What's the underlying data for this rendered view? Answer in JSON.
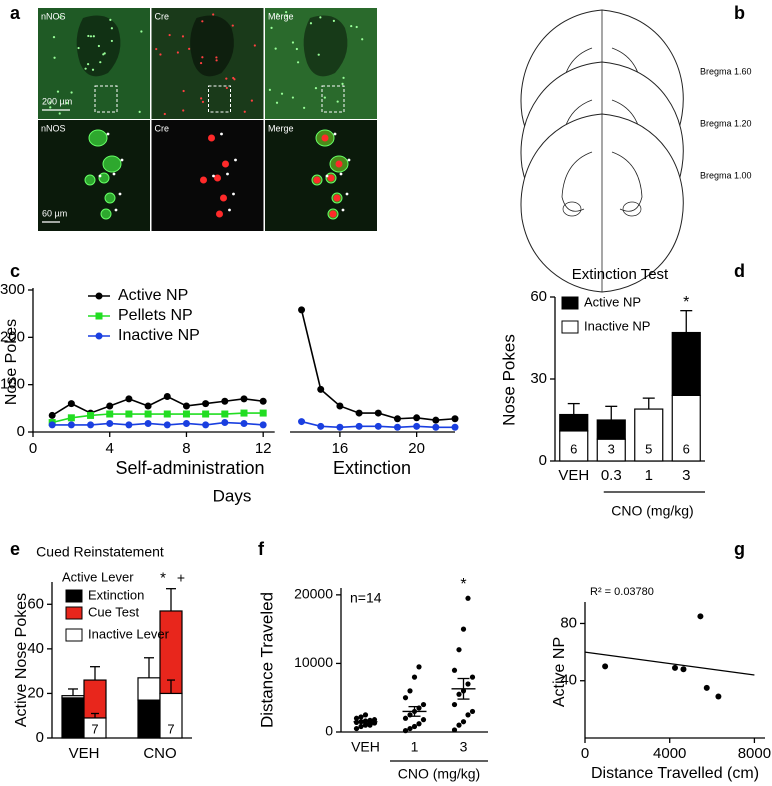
{
  "panel_a": {
    "label": "a",
    "columns": [
      "nNOS",
      "Cre",
      "Merge"
    ],
    "scale_bars": [
      "200 µm",
      "60 µm"
    ]
  },
  "panel_b": {
    "label": "b",
    "sections": [
      "Bregma 1.60",
      "Bregma 1.20",
      "Bregma 1.00"
    ]
  },
  "chart_data": [
    {
      "type": "line",
      "label": "c",
      "y_label": "Nose Pokes",
      "x_label": "Days",
      "phase_labels": [
        "Self-administration",
        "Extinction"
      ],
      "x": [
        1,
        2,
        3,
        4,
        5,
        6,
        7,
        8,
        9,
        10,
        11,
        12,
        13,
        14,
        15,
        16,
        17,
        18,
        19,
        20,
        21,
        22
      ],
      "xlim": [
        0,
        22
      ],
      "xticks": [
        0,
        4,
        8,
        12,
        16,
        20
      ],
      "ylim": [
        0,
        300
      ],
      "yticks": [
        0,
        100,
        200,
        300
      ],
      "series": [
        {
          "name": "Active NP",
          "color": "#000000",
          "marker": "circle",
          "values": [
            35,
            60,
            40,
            55,
            70,
            55,
            75,
            55,
            60,
            65,
            70,
            65,
            null,
            258,
            90,
            55,
            40,
            40,
            28,
            30,
            25,
            28
          ]
        },
        {
          "name": "Pellets NP",
          "color": "#22dd22",
          "marker": "square",
          "values": [
            20,
            30,
            35,
            38,
            38,
            38,
            38,
            38,
            38,
            38,
            40,
            40,
            null,
            null,
            null,
            null,
            null,
            null,
            null,
            null,
            null,
            null
          ]
        },
        {
          "name": "Inactive NP",
          "color": "#1a3fe0",
          "marker": "circle",
          "values": [
            15,
            15,
            15,
            18,
            15,
            18,
            15,
            18,
            15,
            20,
            18,
            15,
            null,
            22,
            12,
            10,
            12,
            12,
            10,
            12,
            10,
            10
          ]
        }
      ]
    },
    {
      "type": "stacked_bar",
      "label": "d",
      "title": "Extinction Test",
      "y_label": "Nose Pokes",
      "categories": [
        "VEH",
        "0.3",
        "1",
        "3"
      ],
      "group_label": "CNO (mg/kg)",
      "ylim": [
        0,
        60
      ],
      "yticks": [
        0,
        30,
        60
      ],
      "series": [
        {
          "name": "Inactive NP",
          "color": "#ffffff",
          "values": [
            11,
            8,
            19,
            24
          ],
          "errors": [
            null,
            null,
            null,
            7
          ]
        },
        {
          "name": "Active NP",
          "color": "#000000",
          "values": [
            6,
            7,
            0,
            23
          ],
          "errors": [
            4,
            5,
            4,
            8
          ]
        }
      ],
      "n_labels": [
        "6",
        "3",
        "5",
        "6"
      ],
      "annotations": [
        "*"
      ]
    },
    {
      "type": "grouped_stacked_bar",
      "label": "e",
      "title": "Cued Reinstatement",
      "y_label": "Active Nose Pokes",
      "legend_title": "Active Lever",
      "categories": [
        "VEH",
        "CNO"
      ],
      "ylim": [
        0,
        70
      ],
      "yticks": [
        0,
        20,
        40,
        60
      ],
      "series": [
        {
          "name": "Extinction",
          "color": "#000000",
          "values": [
            18,
            17
          ]
        },
        {
          "name": "Cue Test",
          "color": "#e8261c",
          "values": [
            17,
            37
          ],
          "errors": [
            6,
            10
          ]
        },
        {
          "name": "Inactive Lever",
          "color": "#ffffff",
          "values": [
            1,
            10
          ],
          "errors": [
            3,
            9
          ],
          "cue_values": [
            9,
            20
          ],
          "cue_errors": [
            2,
            6
          ]
        }
      ],
      "n_labels": [
        "7",
        "7"
      ],
      "annotations": [
        "*",
        "+"
      ]
    },
    {
      "type": "strip",
      "label": "f",
      "y_label": "Distance Traveled",
      "categories": [
        "VEH",
        "1",
        "3"
      ],
      "group_label": "CNO (mg/kg)",
      "color": "#000000",
      "ylim": [
        0,
        21000
      ],
      "yticks": [
        0,
        10000,
        20000
      ],
      "values": [
        [
          500,
          800,
          1000,
          1200,
          1300,
          1400,
          1500,
          1600,
          1700,
          1800,
          2000,
          2200,
          2500,
          1000
        ],
        [
          200,
          500,
          800,
          1200,
          1800,
          2000,
          2500,
          3000,
          3500,
          4000,
          5000,
          6000,
          8000,
          9500
        ],
        [
          300,
          1000,
          1500,
          2500,
          3000,
          4000,
          5500,
          6000,
          7000,
          8000,
          9000,
          12000,
          15000,
          19500
        ]
      ],
      "means": [
        1500,
        3000,
        6300
      ],
      "sems": [
        200,
        700,
        1500
      ],
      "annotations": [
        "n=14",
        "*"
      ]
    },
    {
      "type": "scatter",
      "label": "g",
      "x_label": "Distance Travelled (cm)",
      "y_label": "Active NP",
      "color": "#000000",
      "x": [
        950,
        4250,
        4650,
        5450,
        5750,
        6300
      ],
      "y": [
        50,
        49,
        48,
        85,
        35,
        29
      ],
      "xlim": [
        0,
        8500
      ],
      "xticks": [
        0,
        4000,
        8000
      ],
      "ylim": [
        0,
        95
      ],
      "yticks": [
        40,
        80
      ],
      "fit": {
        "x": [
          0,
          8000
        ],
        "y": [
          60,
          44
        ]
      },
      "annotation": "R² = 0.03780"
    }
  ]
}
